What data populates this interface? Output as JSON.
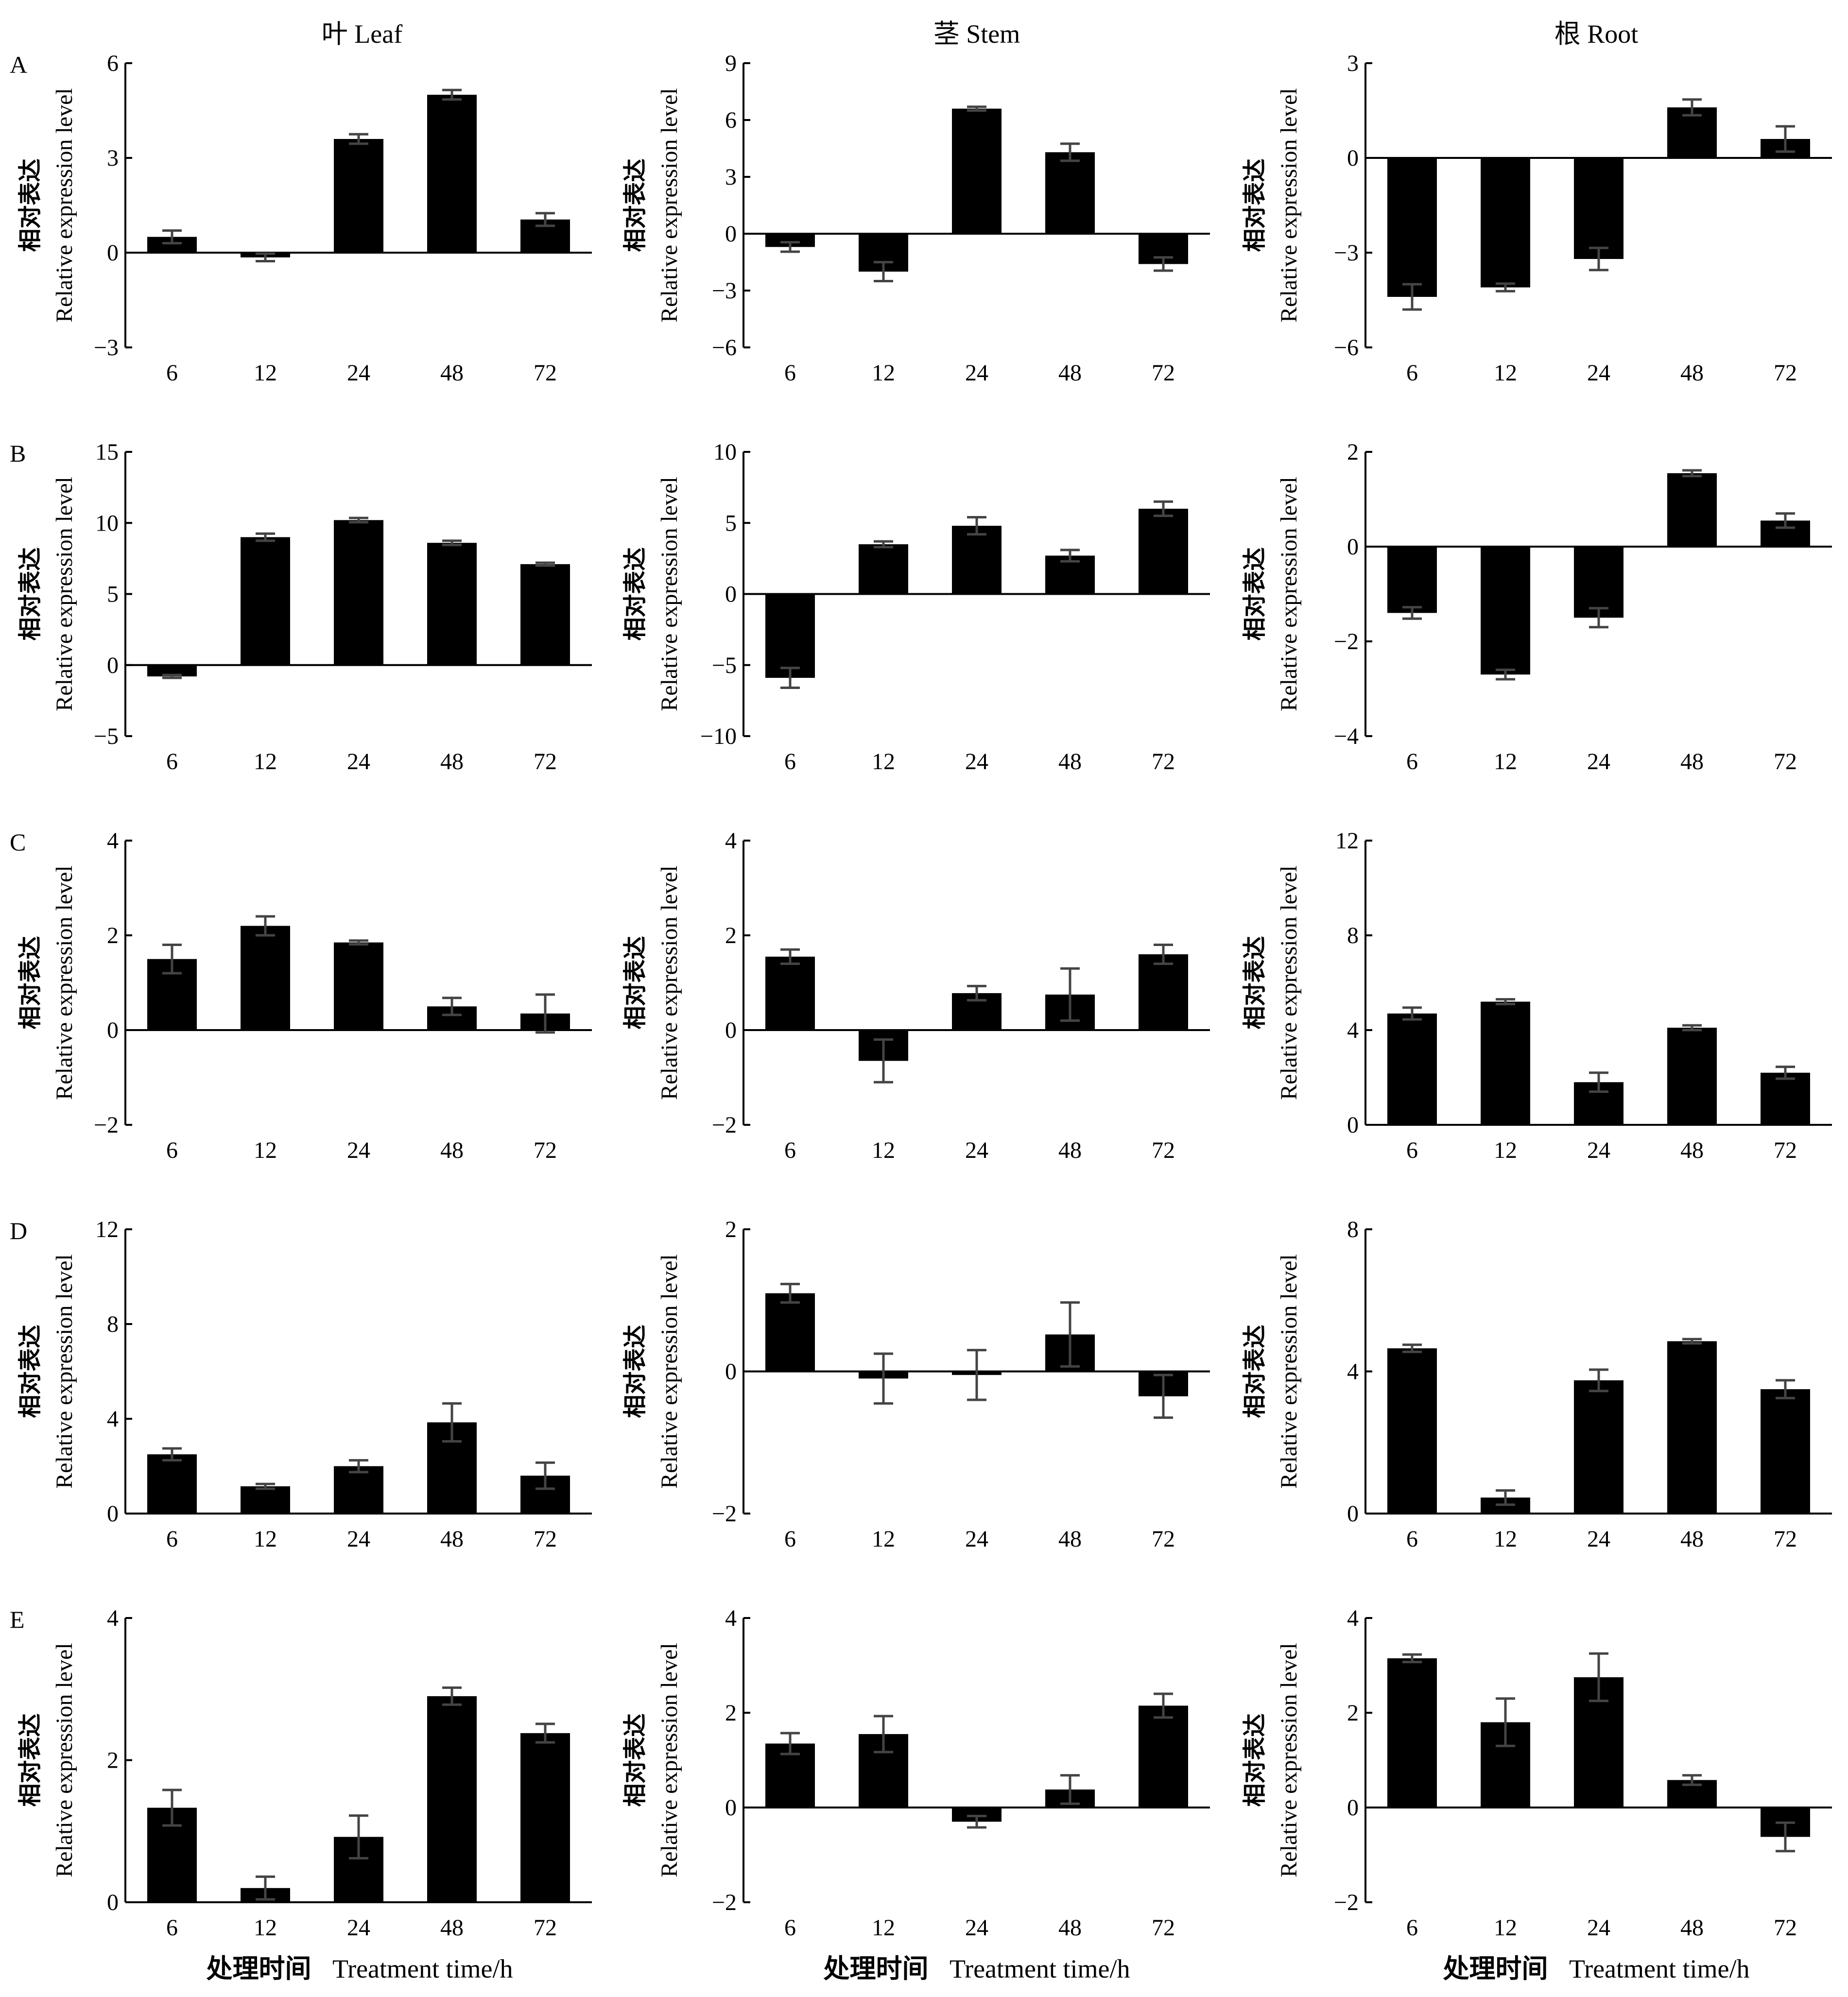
{
  "column_headers": [
    "叶  Leaf",
    "茎  Stem",
    "根  Root"
  ],
  "row_letters": [
    "A",
    "B",
    "C",
    "D",
    "E"
  ],
  "y_label_zh": "相对表达",
  "y_label_en": "Relative expression level",
  "x_label_zh": "处理时间",
  "x_label_en": "Treatment time/h",
  "colors": {
    "bar": "#000000",
    "error_bar": "#444444",
    "axis": "#000000"
  },
  "chart_data": [
    {
      "type": "bar",
      "row": "A",
      "column": "Leaf",
      "categories": [
        "6",
        "12",
        "24",
        "48",
        "72"
      ],
      "values": [
        0.5,
        -0.15,
        3.6,
        5.0,
        1.05
      ],
      "errors": [
        0.2,
        0.12,
        0.15,
        0.15,
        0.2
      ],
      "ylim": [
        -3,
        6
      ],
      "yticks": [
        -3,
        0,
        3,
        6
      ],
      "ytick_labels": [
        "−3",
        "0",
        "3",
        "6"
      ]
    },
    {
      "type": "bar",
      "row": "A",
      "column": "Stem",
      "categories": [
        "6",
        "12",
        "24",
        "48",
        "72"
      ],
      "values": [
        -0.7,
        -2.0,
        6.6,
        4.3,
        -1.6
      ],
      "errors": [
        0.25,
        0.5,
        0.1,
        0.45,
        0.35
      ],
      "ylim": [
        -6,
        9
      ],
      "yticks": [
        -6,
        -3,
        0,
        3,
        6,
        9
      ],
      "ytick_labels": [
        "−6",
        "−3",
        "0",
        "3",
        "6",
        "9"
      ]
    },
    {
      "type": "bar",
      "row": "A",
      "column": "Root",
      "categories": [
        "6",
        "12",
        "24",
        "48",
        "72"
      ],
      "values": [
        -4.4,
        -4.1,
        -3.2,
        1.6,
        0.6
      ],
      "errors": [
        0.4,
        0.12,
        0.35,
        0.25,
        0.4
      ],
      "ylim": [
        -6,
        3
      ],
      "yticks": [
        -6,
        -3,
        0,
        3
      ],
      "ytick_labels": [
        "−6",
        "−3",
        "0",
        "3"
      ]
    },
    {
      "type": "bar",
      "row": "B",
      "column": "Leaf",
      "categories": [
        "6",
        "12",
        "24",
        "48",
        "72"
      ],
      "values": [
        -0.8,
        9.0,
        10.2,
        8.6,
        7.1
      ],
      "errors": [
        0.1,
        0.25,
        0.15,
        0.15,
        0.1
      ],
      "ylim": [
        -5,
        15
      ],
      "yticks": [
        -5,
        0,
        5,
        10,
        15
      ],
      "ytick_labels": [
        "−5",
        "0",
        "5",
        "10",
        "15"
      ]
    },
    {
      "type": "bar",
      "row": "B",
      "column": "Stem",
      "categories": [
        "6",
        "12",
        "24",
        "48",
        "72"
      ],
      "values": [
        -5.9,
        3.5,
        4.8,
        2.7,
        6.0
      ],
      "errors": [
        0.7,
        0.2,
        0.6,
        0.4,
        0.5
      ],
      "ylim": [
        -10,
        10
      ],
      "yticks": [
        -10,
        -5,
        0,
        5,
        10
      ],
      "ytick_labels": [
        "−10",
        "−5",
        "0",
        "5",
        "10"
      ]
    },
    {
      "type": "bar",
      "row": "B",
      "column": "Root",
      "categories": [
        "6",
        "12",
        "24",
        "48",
        "72"
      ],
      "values": [
        -1.4,
        -2.7,
        -1.5,
        1.55,
        0.55
      ],
      "errors": [
        0.12,
        0.1,
        0.2,
        0.06,
        0.15
      ],
      "ylim": [
        -4,
        2
      ],
      "yticks": [
        -4,
        -2,
        0,
        2
      ],
      "ytick_labels": [
        "−4",
        "−2",
        "0",
        "2"
      ]
    },
    {
      "type": "bar",
      "row": "C",
      "column": "Leaf",
      "categories": [
        "6",
        "12",
        "24",
        "48",
        "72"
      ],
      "values": [
        1.5,
        2.2,
        1.85,
        0.5,
        0.35
      ],
      "errors": [
        0.3,
        0.2,
        0.04,
        0.18,
        0.4
      ],
      "ylim": [
        -2,
        4
      ],
      "yticks": [
        -2,
        0,
        2,
        4
      ],
      "ytick_labels": [
        "−2",
        "0",
        "2",
        "4"
      ]
    },
    {
      "type": "bar",
      "row": "C",
      "column": "Stem",
      "categories": [
        "6",
        "12",
        "24",
        "48",
        "72"
      ],
      "values": [
        1.55,
        -0.65,
        0.78,
        0.75,
        1.6
      ],
      "errors": [
        0.15,
        0.45,
        0.15,
        0.55,
        0.2
      ],
      "ylim": [
        -2,
        4
      ],
      "yticks": [
        -2,
        0,
        2,
        4
      ],
      "ytick_labels": [
        "−2",
        "0",
        "2",
        "4"
      ]
    },
    {
      "type": "bar",
      "row": "C",
      "column": "Root",
      "categories": [
        "6",
        "12",
        "24",
        "48",
        "72"
      ],
      "values": [
        4.7,
        5.2,
        1.8,
        4.1,
        2.2
      ],
      "errors": [
        0.25,
        0.1,
        0.4,
        0.1,
        0.25
      ],
      "ylim": [
        0,
        12
      ],
      "yticks": [
        0,
        4,
        8,
        12
      ],
      "ytick_labels": [
        "0",
        "4",
        "8",
        "12"
      ]
    },
    {
      "type": "bar",
      "row": "D",
      "column": "Leaf",
      "categories": [
        "6",
        "12",
        "24",
        "48",
        "72"
      ],
      "values": [
        2.5,
        1.15,
        2.0,
        3.85,
        1.6
      ],
      "errors": [
        0.25,
        0.1,
        0.25,
        0.8,
        0.55
      ],
      "ylim": [
        0,
        12
      ],
      "yticks": [
        0,
        4,
        8,
        12
      ],
      "ytick_labels": [
        "0",
        "4",
        "8",
        "12"
      ]
    },
    {
      "type": "bar",
      "row": "D",
      "column": "Stem",
      "categories": [
        "6",
        "12",
        "24",
        "48",
        "72"
      ],
      "values": [
        1.1,
        -0.1,
        -0.05,
        0.52,
        -0.35
      ],
      "errors": [
        0.13,
        0.35,
        0.35,
        0.45,
        0.3
      ],
      "ylim": [
        -2,
        2
      ],
      "yticks": [
        -2,
        0,
        2
      ],
      "ytick_labels": [
        "−2",
        "0",
        "2"
      ]
    },
    {
      "type": "bar",
      "row": "D",
      "column": "Root",
      "categories": [
        "6",
        "12",
        "24",
        "48",
        "72"
      ],
      "values": [
        4.65,
        0.45,
        3.75,
        4.85,
        3.5
      ],
      "errors": [
        0.1,
        0.2,
        0.3,
        0.06,
        0.25
      ],
      "ylim": [
        0,
        8
      ],
      "yticks": [
        0,
        4,
        8
      ],
      "ytick_labels": [
        "0",
        "4",
        "8"
      ]
    },
    {
      "type": "bar",
      "row": "E",
      "column": "Leaf",
      "categories": [
        "6",
        "12",
        "24",
        "48",
        "72"
      ],
      "values": [
        1.33,
        0.2,
        0.92,
        2.9,
        2.38
      ],
      "errors": [
        0.25,
        0.16,
        0.3,
        0.12,
        0.13
      ],
      "ylim": [
        0,
        4
      ],
      "yticks": [
        0,
        2,
        4
      ],
      "ytick_labels": [
        "0",
        "2",
        "4"
      ]
    },
    {
      "type": "bar",
      "row": "E",
      "column": "Stem",
      "categories": [
        "6",
        "12",
        "24",
        "48",
        "72"
      ],
      "values": [
        1.35,
        1.55,
        -0.3,
        0.38,
        2.15
      ],
      "errors": [
        0.22,
        0.38,
        0.12,
        0.3,
        0.25
      ],
      "ylim": [
        -2,
        4
      ],
      "yticks": [
        -2,
        0,
        2,
        4
      ],
      "ytick_labels": [
        "−2",
        "0",
        "2",
        "4"
      ]
    },
    {
      "type": "bar",
      "row": "E",
      "column": "Root",
      "categories": [
        "6",
        "12",
        "24",
        "48",
        "72"
      ],
      "values": [
        3.15,
        1.8,
        2.75,
        0.58,
        -0.62
      ],
      "errors": [
        0.08,
        0.5,
        0.5,
        0.1,
        0.3
      ],
      "ylim": [
        -2,
        4
      ],
      "yticks": [
        -2,
        0,
        2,
        4
      ],
      "ytick_labels": [
        "−2",
        "0",
        "2",
        "4"
      ]
    }
  ]
}
